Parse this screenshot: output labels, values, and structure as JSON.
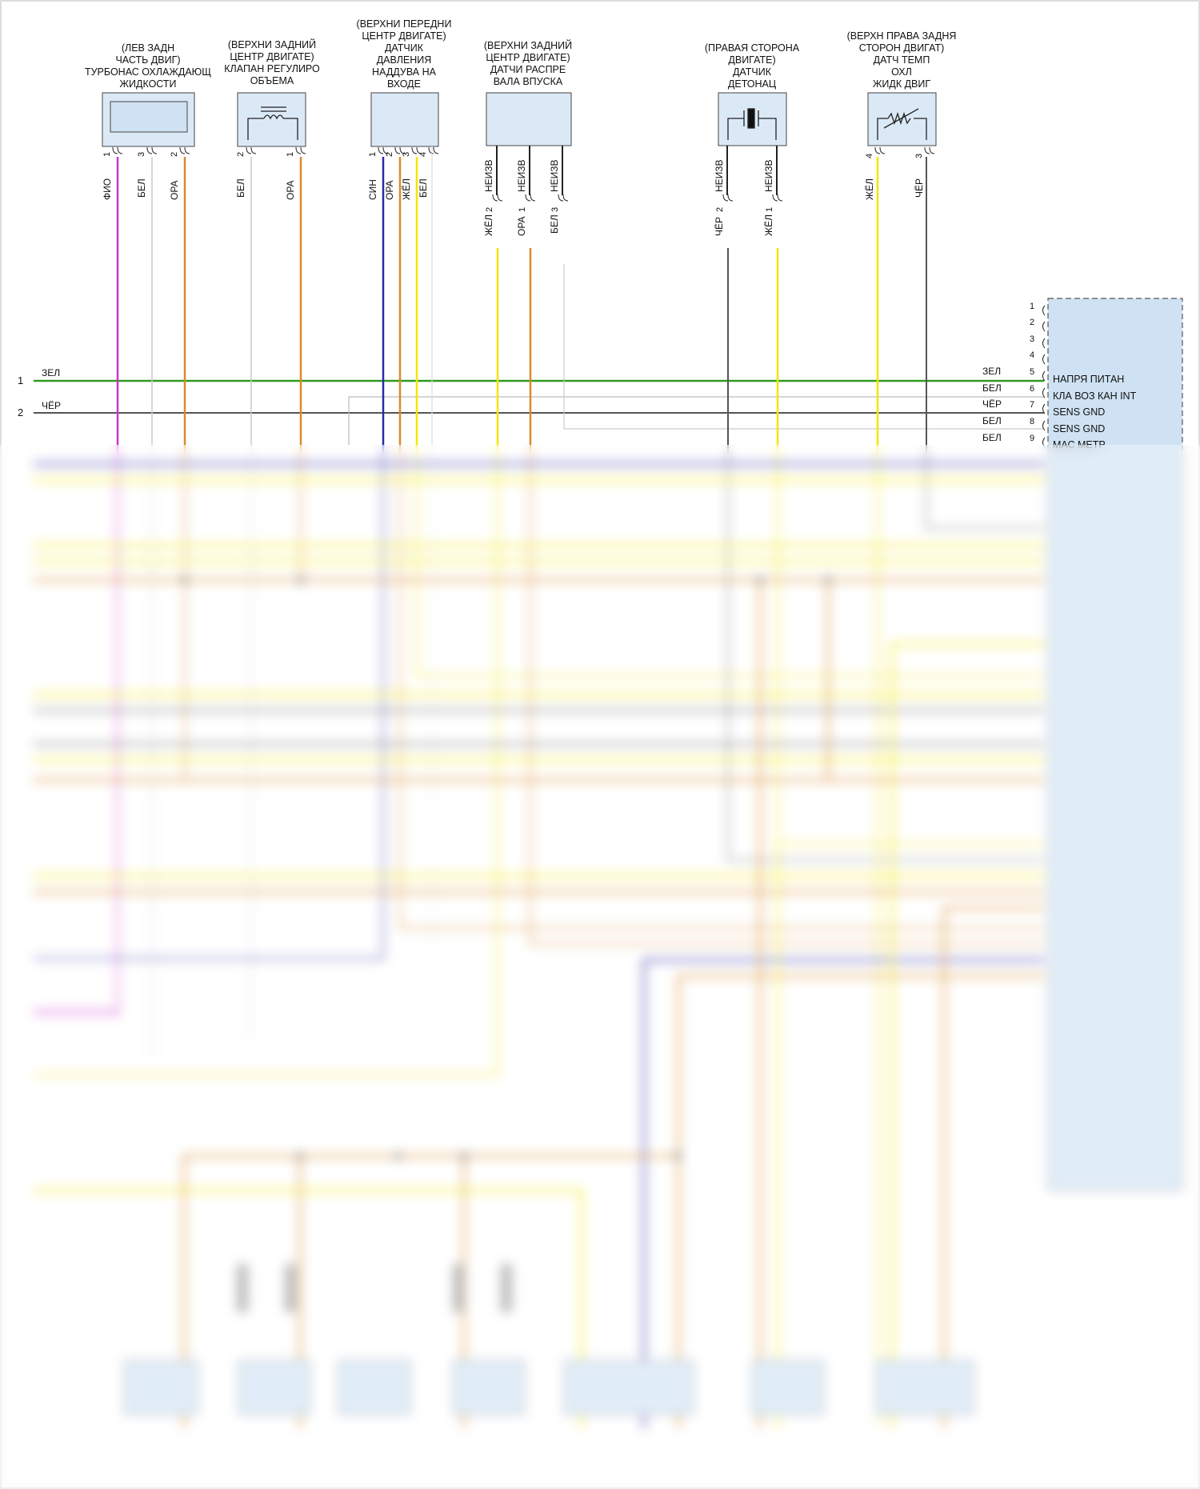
{
  "components": [
    {
      "id": "c1",
      "title": [
        "(ЛЕВ ЗАДН",
        "ЧАСТЬ ДВИГ)",
        "ТУРБОНАС ОХЛАЖДАЮЩ",
        "ЖИДКОСТИ"
      ],
      "pins": [
        {
          "n": "1",
          "color": "ФИО"
        },
        {
          "n": "3",
          "color": "БЕЛ"
        },
        {
          "n": "2",
          "color": "ОРА"
        }
      ]
    },
    {
      "id": "c2",
      "title": [
        "(ВЕРХНИ ЗАДНИЙ",
        "ЦЕНТР ДВИГАТЕ)",
        "КЛАПАН РЕГУЛИРО",
        "ОБЪЕМА"
      ],
      "pins": [
        {
          "n": "2",
          "color": "БЕЛ"
        },
        {
          "n": "1",
          "color": "ОРА"
        }
      ]
    },
    {
      "id": "c3",
      "title": [
        "(ВЕРХНИ ПЕРЕДНИ",
        "ЦЕНТР ДВИГАТЕ)",
        "ДАТЧИК",
        "ДАВЛЕНИЯ",
        "НАДДУВА НА",
        "ВХОДЕ"
      ],
      "pins": [
        {
          "n": "1",
          "color": "СИН"
        },
        {
          "n": "2",
          "color": "ОРА"
        },
        {
          "n": "3",
          "color": "ЖЁЛ"
        },
        {
          "n": "4",
          "color": "БЕЛ"
        }
      ]
    },
    {
      "id": "c4",
      "title": [
        "(ВЕРХНИ ЗАДНИЙ",
        "ЦЕНТР ДВИГАТЕ)",
        "ДАТЧИ РАСПРЕ",
        "ВАЛА ВПУСКА"
      ],
      "pins": [
        {
          "n": "2",
          "color": "ЖЁЛ",
          "conn": "НЕИЗВ"
        },
        {
          "n": "1",
          "color": "ОРА",
          "conn": "НЕИЗВ"
        },
        {
          "n": "3",
          "color": "БЕЛ",
          "conn": "НЕИЗВ"
        }
      ]
    },
    {
      "id": "c5",
      "title": [
        "(ПРАВАЯ СТОРОНА",
        "ДВИГАТЕ)",
        "ДАТЧИК",
        "ДЕТОНАЦ"
      ],
      "pins": [
        {
          "n": "2",
          "color": "ЧЁР",
          "conn": "НЕИЗВ"
        },
        {
          "n": "1",
          "color": "ЖЁЛ",
          "conn": "НЕИЗВ"
        }
      ]
    },
    {
      "id": "c6",
      "title": [
        "(ВЕРХН ПРАВА ЗАДНЯ",
        "СТОРОН ДВИГАТ)",
        "ДАТЧ ТЕМП",
        "ОХЛ",
        "ЖИДК ДВИГ"
      ],
      "pins": [
        {
          "n": "4",
          "color": "ЖЁЛ"
        },
        {
          "n": "3",
          "color": "ЧЁР"
        }
      ]
    }
  ],
  "left_wires": [
    {
      "n": "1",
      "color": "ЗЕЛ"
    },
    {
      "n": "2",
      "color": "ЧЁР"
    }
  ],
  "ecu": {
    "rows": [
      {
        "n": "1",
        "color": "",
        "label": ""
      },
      {
        "n": "2",
        "color": "",
        "label": ""
      },
      {
        "n": "3",
        "color": "",
        "label": ""
      },
      {
        "n": "4",
        "color": "",
        "label": ""
      },
      {
        "n": "5",
        "color": "ЗЕЛ",
        "label": "НАПРЯ ПИТАН"
      },
      {
        "n": "6",
        "color": "БЕЛ",
        "label": "КЛА ВОЗ КАН INT"
      },
      {
        "n": "7",
        "color": "ЧЁР",
        "label": "SENS GND"
      },
      {
        "n": "8",
        "color": "БЕЛ",
        "label": "SENS GND"
      },
      {
        "n": "9",
        "color": "БЕЛ",
        "label": "МАС МЕТР"
      }
    ]
  },
  "colors": {
    "green": "#2e9b1f",
    "black": "#4a4a4a",
    "magenta": "#cc33cc",
    "white": "#cccccc",
    "orange": "#d98b2b",
    "blue": "#2a2aa8",
    "yellow": "#f2e600",
    "ecu_fill": "#cfe2f3",
    "comp_fill": "#d6e7f7"
  }
}
